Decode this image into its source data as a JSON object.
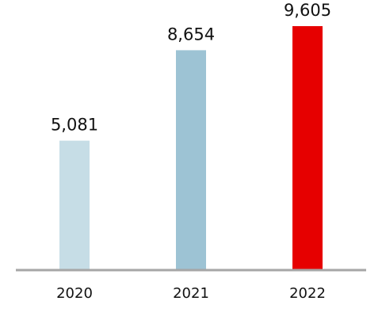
{
  "chart_data": {
    "type": "bar",
    "title": "",
    "xlabel": "",
    "ylabel": "",
    "categories": [
      "2020",
      "2021",
      "2022"
    ],
    "values": [
      5081,
      8654,
      9605
    ],
    "value_labels": [
      "5,081",
      "8,654",
      "9,605"
    ],
    "ylim": [
      0,
      9605
    ],
    "grid": false,
    "legend": "none",
    "bar_colors": [
      "#c6dde6",
      "#9dc3d4",
      "#e60000"
    ],
    "baseline_color": "#a6a6a6"
  }
}
